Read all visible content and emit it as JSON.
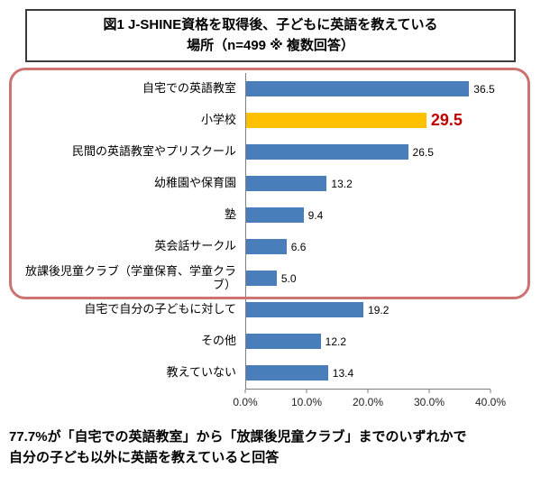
{
  "title": {
    "line1": "図1 J-SHINE資格を取得後、子どもに英語を教えている",
    "line2": "場所（n=499 ※ 複数回答）"
  },
  "chart_data": {
    "type": "bar",
    "orientation": "horizontal",
    "categories": [
      "自宅での英語教室",
      "小学校",
      "民間の英語教室やプリスクール",
      "幼稚園や保育園",
      "塾",
      "英会話サークル",
      "放課後児童クラブ（学童保育、学童クラブ）",
      "自宅で自分の子どもに対して",
      "その他",
      "教えていない"
    ],
    "values": [
      36.5,
      29.5,
      26.5,
      13.2,
      9.4,
      6.6,
      5.0,
      19.2,
      12.2,
      13.4
    ],
    "highlight_index": 1,
    "bar_color": "#4a7ebb",
    "highlight_color": "#ffc000",
    "value_label_color": "#000000",
    "highlight_value_color": "#c00000",
    "xlim": [
      0,
      40
    ],
    "x_ticks": [
      "0.0%",
      "10.0%",
      "20.0%",
      "30.0%",
      "40.0%"
    ],
    "grid": false,
    "legend": "none",
    "annotation_box": {
      "rows": [
        0,
        6
      ],
      "color": "#cd7371"
    }
  },
  "footer": {
    "line1": "77.7%が「自宅での英語教室」から「放課後児童クラブ」までのいずれかで",
    "line2": "自分の子ども以外に英語を教えていると回答"
  }
}
